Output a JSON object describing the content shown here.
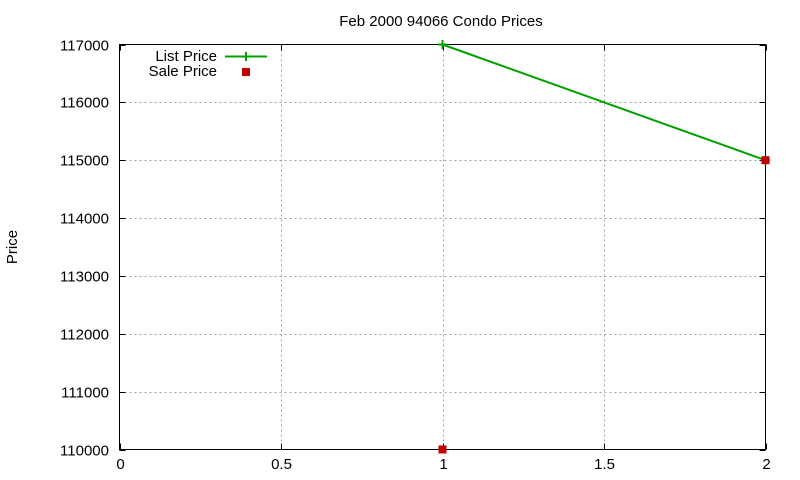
{
  "chart_data": {
    "type": "line",
    "title": "Feb 2000 94066 Condo Prices",
    "xlabel": "",
    "ylabel": "Price",
    "xlim": [
      0,
      2
    ],
    "ylim": [
      110000,
      117000
    ],
    "xticks": [
      "0",
      "0.5",
      "1",
      "1.5",
      "2"
    ],
    "yticks": [
      "110000",
      "111000",
      "112000",
      "113000",
      "114000",
      "115000",
      "116000",
      "117000"
    ],
    "grid": true,
    "legend_position": "top-left",
    "series": [
      {
        "name": "List Price",
        "style": "line+cross",
        "color": "#00a000",
        "x": [
          1,
          2
        ],
        "y": [
          117000,
          115000
        ]
      },
      {
        "name": "Sale Price",
        "style": "square",
        "color": "#c00000",
        "x": [
          1,
          2
        ],
        "y": [
          110000,
          115000
        ]
      }
    ]
  }
}
